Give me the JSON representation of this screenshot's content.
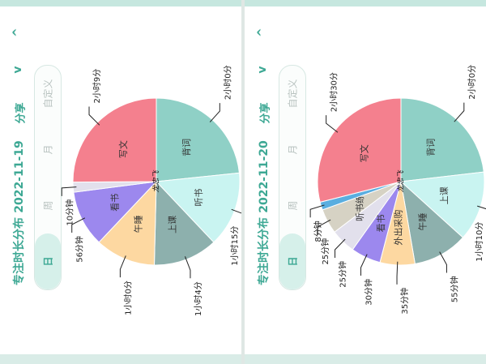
{
  "colors": {
    "accent": "#3da894",
    "segment_active_bg": "#d6f0ea",
    "panel_bg": "#ffffff",
    "page_bg": "#e9f3ef"
  },
  "icons": {
    "collapse": "chevron-up-icon",
    "expand": "chevron-down-icon"
  },
  "panels": [
    {
      "title": "专注时长分布",
      "date": "2022-11-19",
      "share_label": "分享",
      "chevron_up": "^",
      "chevron_down": "v",
      "segments": [
        {
          "label": "日",
          "active": true
        },
        {
          "label": "周",
          "active": false
        },
        {
          "label": "月",
          "active": false
        },
        {
          "label": "自定义",
          "active": false
        }
      ],
      "chart_data": {
        "type": "pie",
        "categories": [
          "背词",
          "听书",
          "上课",
          "午睡",
          "看书",
          "",
          "写文"
        ],
        "values": [
          120,
          75,
          64,
          60,
          56,
          10,
          129
        ],
        "value_labels": [
          "2小时0分",
          "1小时15分",
          "1小时4分",
          "1小时0分",
          "56分钟",
          "10分钟",
          "2小时9分"
        ],
        "colors": [
          "#8fd0c6",
          "#c9f4f1",
          "#8db0ad",
          "#fdd8a1",
          "#9c88ee",
          "#e2e0ec",
          "#f4808e"
        ],
        "watermark": "龙忠飞"
      }
    },
    {
      "title": "专注时长分布",
      "date": "2022-11-20",
      "share_label": "分享",
      "chevron_up": "^",
      "chevron_down": "v",
      "segments": [
        {
          "label": "日",
          "active": true
        },
        {
          "label": "周",
          "active": false
        },
        {
          "label": "月",
          "active": false
        },
        {
          "label": "自定义",
          "active": false
        }
      ],
      "chart_data": {
        "type": "pie",
        "categories": [
          "背词",
          "上课",
          "午睡",
          "外出采购",
          "看书",
          "",
          "听书练字",
          "",
          "写文"
        ],
        "values": [
          120,
          70,
          55,
          35,
          30,
          25,
          25,
          8,
          150
        ],
        "value_labels": [
          "2小时0分",
          "1小时10分",
          "55分钟",
          "35分钟",
          "30分钟",
          "25分钟",
          "25分钟",
          "8分钟",
          "2小时30分"
        ],
        "colors": [
          "#8fd0c6",
          "#c9f4f1",
          "#8db0ad",
          "#fdd8a1",
          "#9c88ee",
          "#e2e0ec",
          "#d6d2c4",
          "#5aaee0",
          "#f4808e"
        ],
        "watermark": "龙忠飞"
      }
    }
  ]
}
